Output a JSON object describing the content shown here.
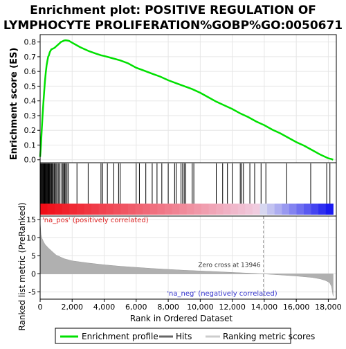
{
  "title_line1": "Enrichment plot: POSITIVE REGULATION OF",
  "title_line2": "LYMPHOCYTE PROLIFERATION%GOBP%GO:0050671",
  "colors": {
    "es_line": "#00e000",
    "hits": "#000000",
    "metric_fill": "#b0b0b0",
    "pos_label": "#dd2222",
    "neg_label": "#3333cc",
    "frame": "#000000",
    "grid": "#e6e6e6"
  },
  "chart_data": {
    "type": "line",
    "xlabel": "Rank in Ordered Dataset",
    "x_ticks": [
      "0",
      "2,000",
      "4,000",
      "6,000",
      "8,000",
      "10,000",
      "12,000",
      "14,000",
      "16,000",
      "18,000"
    ],
    "x_tick_values": [
      0,
      2000,
      4000,
      6000,
      8000,
      10000,
      12000,
      14000,
      16000,
      18000
    ],
    "xlim": [
      0,
      18500
    ],
    "es_panel": {
      "ylabel": "Enrichment score (ES)",
      "ylim": [
        -0.02,
        0.85
      ],
      "y_ticks": [
        "0.0",
        "0.1",
        "0.2",
        "0.3",
        "0.4",
        "0.5",
        "0.6",
        "0.7",
        "0.8"
      ],
      "y_tick_values": [
        0,
        0.1,
        0.2,
        0.3,
        0.4,
        0.5,
        0.6,
        0.7,
        0.8
      ],
      "series": [
        {
          "name": "Enrichment profile",
          "x": [
            0,
            50,
            100,
            150,
            200,
            250,
            300,
            350,
            400,
            450,
            500,
            550,
            600,
            650,
            700,
            800,
            900,
            1000,
            1100,
            1200,
            1300,
            1400,
            1500,
            1600,
            1700,
            1800,
            2000,
            2500,
            3000,
            3500,
            3800,
            4000,
            4500,
            5000,
            5500,
            6000,
            6500,
            7000,
            7500,
            8000,
            8500,
            9000,
            9500,
            10000,
            10500,
            11000,
            11500,
            12000,
            12500,
            13000,
            13500,
            14000,
            14500,
            15000,
            15500,
            16000,
            16500,
            17000,
            17500,
            18000,
            18200,
            18300
          ],
          "y": [
            0.02,
            0.1,
            0.2,
            0.3,
            0.38,
            0.46,
            0.53,
            0.59,
            0.64,
            0.67,
            0.7,
            0.71,
            0.73,
            0.74,
            0.75,
            0.755,
            0.76,
            0.77,
            0.78,
            0.79,
            0.8,
            0.805,
            0.81,
            0.812,
            0.81,
            0.808,
            0.795,
            0.765,
            0.74,
            0.72,
            0.71,
            0.705,
            0.69,
            0.675,
            0.655,
            0.625,
            0.605,
            0.585,
            0.565,
            0.54,
            0.52,
            0.5,
            0.48,
            0.455,
            0.425,
            0.395,
            0.37,
            0.345,
            0.315,
            0.29,
            0.26,
            0.235,
            0.205,
            0.18,
            0.15,
            0.12,
            0.095,
            0.065,
            0.035,
            0.01,
            0.005,
            0.0
          ]
        }
      ]
    },
    "hits_panel": {
      "name": "Hits",
      "hit_ranks": [
        20,
        60,
        100,
        140,
        180,
        220,
        260,
        300,
        340,
        380,
        420,
        460,
        500,
        540,
        580,
        620,
        680,
        720,
        760,
        820,
        880,
        940,
        1000,
        1080,
        1160,
        1240,
        1350,
        1420,
        1480,
        1540,
        1600,
        1680,
        1760,
        2300,
        3000,
        3800,
        3900,
        4200,
        4600,
        4900,
        5000,
        6000,
        6200,
        6600,
        7000,
        7300,
        7600,
        8000,
        8400,
        8500,
        8800,
        8900,
        9000,
        9100,
        9500,
        9600,
        11000,
        11400,
        11700,
        12000,
        12500,
        12600,
        12700,
        13100,
        13400,
        13800,
        14100,
        15400,
        16900,
        17900,
        18100
      ]
    },
    "metric_panel": {
      "name": "Ranking metric scores",
      "ylabel": "Ranked list metric (PreRanked)",
      "ylim": [
        -7,
        16
      ],
      "y_ticks": [
        "-5",
        "0",
        "5",
        "10",
        "15"
      ],
      "y_tick_values": [
        -5,
        0,
        5,
        10,
        15
      ],
      "x": [
        0,
        50,
        100,
        200,
        300,
        500,
        800,
        1000,
        1500,
        2000,
        3000,
        4000,
        5000,
        6000,
        7000,
        8000,
        9000,
        10000,
        11000,
        12000,
        13000,
        13946,
        14500,
        15000,
        16000,
        17000,
        17500,
        17800,
        18000,
        18100,
        18200,
        18300
      ],
      "y": [
        14.5,
        11.0,
        10.0,
        9.0,
        8.2,
        7.2,
        6.0,
        5.2,
        4.2,
        3.6,
        3.0,
        2.5,
        2.1,
        1.8,
        1.5,
        1.25,
        1.0,
        0.8,
        0.6,
        0.4,
        0.2,
        0.0,
        -0.15,
        -0.3,
        -0.6,
        -1.0,
        -1.4,
        -1.8,
        -2.2,
        -2.6,
        -3.5,
        -6.2
      ],
      "zero_cross_rank": 13946,
      "zero_cross_label": "Zero cross at 13946",
      "pos_label": "'na_pos' (positively correlated)",
      "neg_label": "'na_neg' (negatively correlated)"
    },
    "legend": {
      "placement": "bottom",
      "items": [
        "Enrichment profile",
        "Hits",
        "Ranking metric scores"
      ]
    }
  }
}
